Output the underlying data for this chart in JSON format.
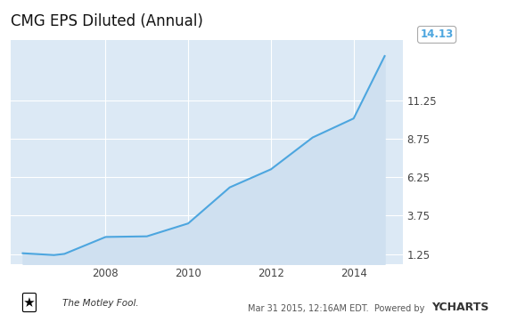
{
  "title": "CMG EPS Diluted (Annual)",
  "title_fontsize": 12,
  "x_years": [
    2006.0,
    2006.75,
    2007.0,
    2008.0,
    2009.0,
    2010.0,
    2011.0,
    2012.0,
    2013.0,
    2014.0,
    2014.75
  ],
  "y_values": [
    1.3,
    1.18,
    1.25,
    2.36,
    2.4,
    3.24,
    5.58,
    6.76,
    8.82,
    10.07,
    14.13
  ],
  "line_color": "#4da6df",
  "fill_color": "#cfe0f0",
  "bg_color": "#dce9f5",
  "outer_bg": "#ffffff",
  "yticks": [
    1.25,
    3.75,
    6.25,
    8.75,
    11.25
  ],
  "xticks": [
    2008,
    2010,
    2012,
    2014
  ],
  "ylim_bottom": 0.6,
  "ylim_top": 15.2,
  "xlim_left": 2005.7,
  "xlim_right": 2015.2,
  "last_label": "14.13",
  "last_label_color": "#4da6df",
  "grid_color": "#ffffff",
  "spine_color": "#c0cfd8"
}
